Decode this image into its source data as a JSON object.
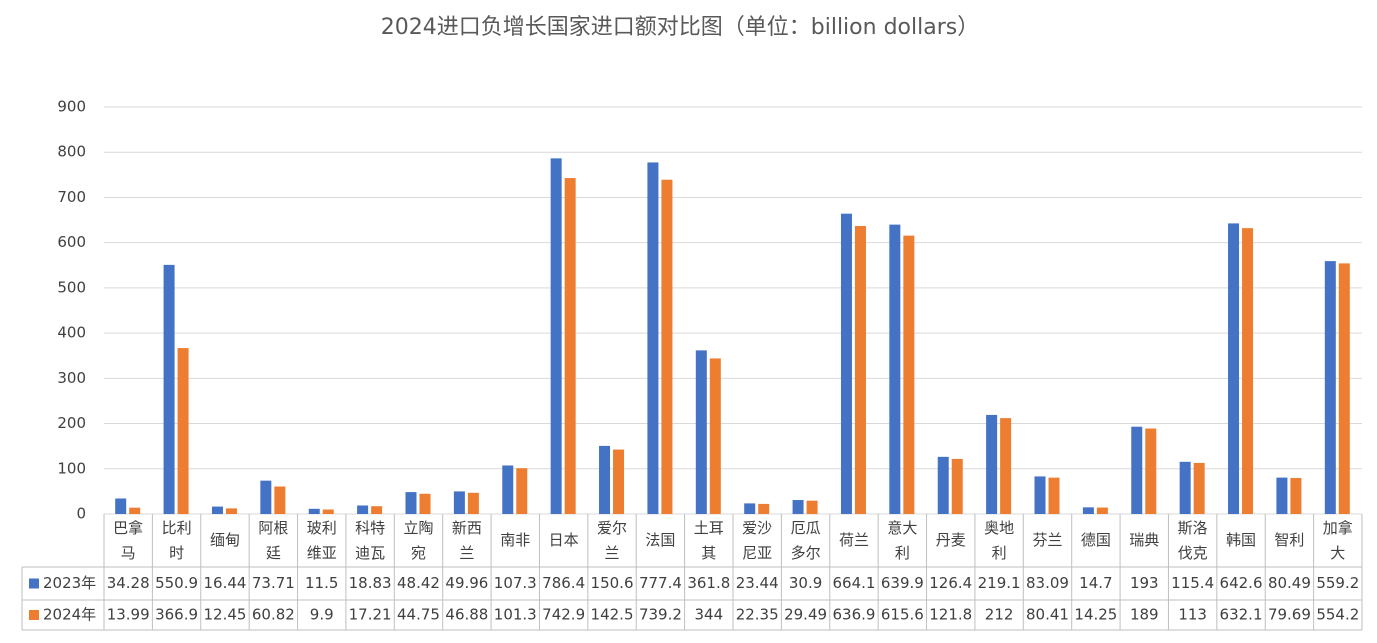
{
  "chart_data": {
    "type": "bar",
    "title": "2024进口负增长国家进口额对比图（单位：billion dollars）",
    "categories": [
      "巴拿马",
      "比利时",
      "缅甸",
      "阿根廷",
      "玻利维亚",
      "科特迪瓦",
      "立陶宛",
      "新西兰",
      "南非",
      "日本",
      "爱尔兰",
      "法国",
      "土耳其",
      "爱沙尼亚",
      "厄瓜多尔",
      "荷兰",
      "意大利",
      "丹麦",
      "奥地利",
      "芬兰",
      "德国",
      "瑞典",
      "斯洛伐克",
      "韩国",
      "智利",
      "加拿大"
    ],
    "series": [
      {
        "name": "2023年",
        "color": "#4472c4",
        "values": [
          34.28,
          550.9,
          16.44,
          73.71,
          11.5,
          18.83,
          48.42,
          49.96,
          107.3,
          786.4,
          150.6,
          777.4,
          361.8,
          23.44,
          30.9,
          664.1,
          639.9,
          126.4,
          219.1,
          83.09,
          14.7,
          193,
          115.4,
          642.6,
          80.49,
          559.2
        ]
      },
      {
        "name": "2024年",
        "color": "#ed7d31",
        "values": [
          13.99,
          366.9,
          12.45,
          60.82,
          9.9,
          17.21,
          44.75,
          46.88,
          101.3,
          742.9,
          142.5,
          739.2,
          344,
          22.35,
          29.49,
          636.9,
          615.6,
          121.8,
          212,
          80.41,
          14.25,
          189,
          113,
          632.1,
          79.69,
          554.2
        ]
      }
    ],
    "ylim": [
      0,
      900
    ],
    "yticks": [
      0,
      100,
      200,
      300,
      400,
      500,
      600,
      700,
      800,
      900
    ],
    "grid": true
  }
}
